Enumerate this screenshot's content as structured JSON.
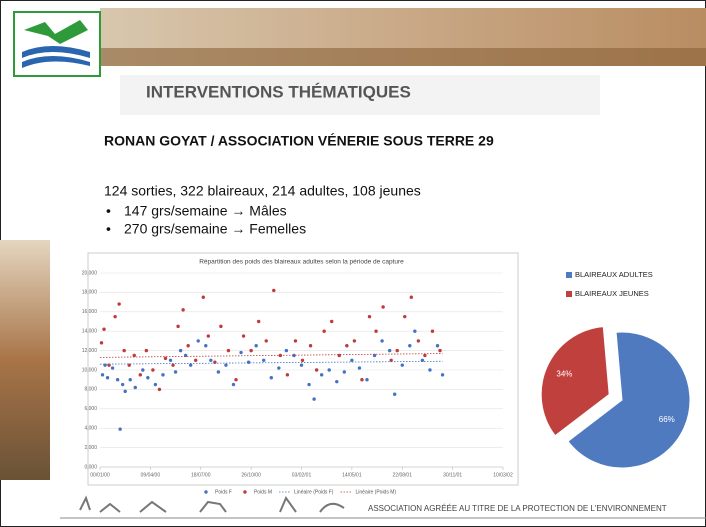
{
  "header": {
    "title": "INTERVENTIONS THÉMATIQUES",
    "subtitle": "RONAN GOYAT / ASSOCIATION VÉNERIE SOUS TERRE 29"
  },
  "body": {
    "summary": "124 sorties, 322 blaireaux, 214 adultes, 108 jeunes",
    "bullets": [
      "147 grs/semaine → Mâles",
      "270 grs/semaine → Femelles"
    ]
  },
  "footer": "ASSOCIATION AGRÉÉE AU TITRE DE LA PROTECTION DE L'ENVIRONNEMENT",
  "chart_data": [
    {
      "type": "scatter",
      "title": "Répartition des poids des blaireaux adultes selon la période de capture",
      "xlim": [
        0,
        800
      ],
      "xticks": [
        {
          "value": 0,
          "label": "00/01/00"
        },
        {
          "value": 100,
          "label": "09/04/00"
        },
        {
          "value": 200,
          "label": "18/07/00"
        },
        {
          "value": 300,
          "label": "26/10/00"
        },
        {
          "value": 400,
          "label": "03/02/01"
        },
        {
          "value": 500,
          "label": "14/05/01"
        },
        {
          "value": 600,
          "label": "22/08/01"
        },
        {
          "value": 700,
          "label": "30/11/01"
        },
        {
          "value": 800,
          "label": "10/03/02"
        }
      ],
      "ylim": [
        0,
        20
      ],
      "yticks": [
        {
          "value": 0,
          "label": "0,000"
        },
        {
          "value": 2,
          "label": "2,000"
        },
        {
          "value": 4,
          "label": "4,000"
        },
        {
          "value": 6,
          "label": "6,000"
        },
        {
          "value": 8,
          "label": "8,000"
        },
        {
          "value": 10,
          "label": "10,000"
        },
        {
          "value": 12,
          "label": "12,000"
        },
        {
          "value": 14,
          "label": "14,000"
        },
        {
          "value": 16,
          "label": "16,000"
        },
        {
          "value": 18,
          "label": "18,000"
        },
        {
          "value": 20,
          "label": "20,000"
        }
      ],
      "grid": true,
      "legend": "bottom",
      "series": [
        {
          "name": "Poids F",
          "color": "#4472c4",
          "mode": "markers",
          "x": [
            5,
            10,
            15,
            25,
            35,
            40,
            45,
            50,
            60,
            70,
            85,
            95,
            110,
            125,
            140,
            150,
            160,
            170,
            180,
            195,
            210,
            220,
            235,
            250,
            265,
            280,
            295,
            310,
            325,
            340,
            355,
            370,
            385,
            400,
            415,
            425,
            440,
            455,
            470,
            485,
            500,
            515,
            530,
            545,
            560,
            575,
            585,
            600,
            615,
            625,
            640,
            655,
            670,
            680
          ],
          "values": [
            9.5,
            10.5,
            9.2,
            10.2,
            9,
            3.9,
            8.5,
            7.8,
            9,
            8.2,
            10,
            9.2,
            8.5,
            9.5,
            11,
            9.8,
            12,
            11.5,
            10.5,
            13,
            12.5,
            11,
            9.8,
            10.5,
            8.5,
            11.8,
            10.8,
            12.5,
            11,
            9.2,
            10.2,
            12,
            11.5,
            10.5,
            8.5,
            7,
            9.5,
            10,
            8.8,
            9.8,
            11,
            10.2,
            9,
            11.5,
            13,
            12,
            7.5,
            10.5,
            12.5,
            14,
            11,
            10,
            12.5,
            9.5
          ]
        },
        {
          "name": "Poids M",
          "color": "#c0393b",
          "mode": "markers",
          "x": [
            3,
            8,
            18,
            30,
            38,
            48,
            58,
            68,
            80,
            92,
            105,
            118,
            130,
            145,
            155,
            165,
            175,
            190,
            205,
            215,
            228,
            240,
            255,
            270,
            285,
            300,
            315,
            330,
            345,
            358,
            372,
            388,
            402,
            418,
            430,
            445,
            460,
            475,
            490,
            505,
            520,
            535,
            548,
            562,
            578,
            590,
            605,
            618,
            632,
            645,
            660,
            675
          ],
          "values": [
            12.8,
            14.2,
            10.5,
            15.5,
            16.8,
            12,
            10.5,
            11.5,
            9.5,
            12,
            10,
            8,
            11.2,
            10.5,
            14.5,
            16.2,
            12.5,
            11,
            17.5,
            13.5,
            10.8,
            14.5,
            12,
            9,
            13.5,
            12,
            15,
            13,
            18.2,
            11.5,
            9.5,
            13,
            11,
            12.5,
            10,
            14,
            15,
            11.5,
            12.5,
            13,
            9,
            15.5,
            14,
            16.5,
            11,
            12,
            15.5,
            17.5,
            13,
            11.5,
            14,
            12
          ]
        },
        {
          "name": "Linéaire (Poids F)",
          "color": "#4472c4",
          "mode": "line",
          "x": [
            0,
            680
          ],
          "values": [
            10.6,
            10.9
          ]
        },
        {
          "name": "Linéaire (Poids M)",
          "color": "#c0393b",
          "mode": "line",
          "x": [
            0,
            680
          ],
          "values": [
            11.3,
            11.7
          ]
        }
      ]
    },
    {
      "type": "pie",
      "categories": [
        "BLAIREAUX ADULTES",
        "BLAIREAUX JEUNES"
      ],
      "values": [
        66,
        34
      ],
      "value_labels": [
        "66%",
        "34%"
      ],
      "colors": [
        "#4f7ac0",
        "#c0403e"
      ],
      "legend": "top"
    }
  ]
}
